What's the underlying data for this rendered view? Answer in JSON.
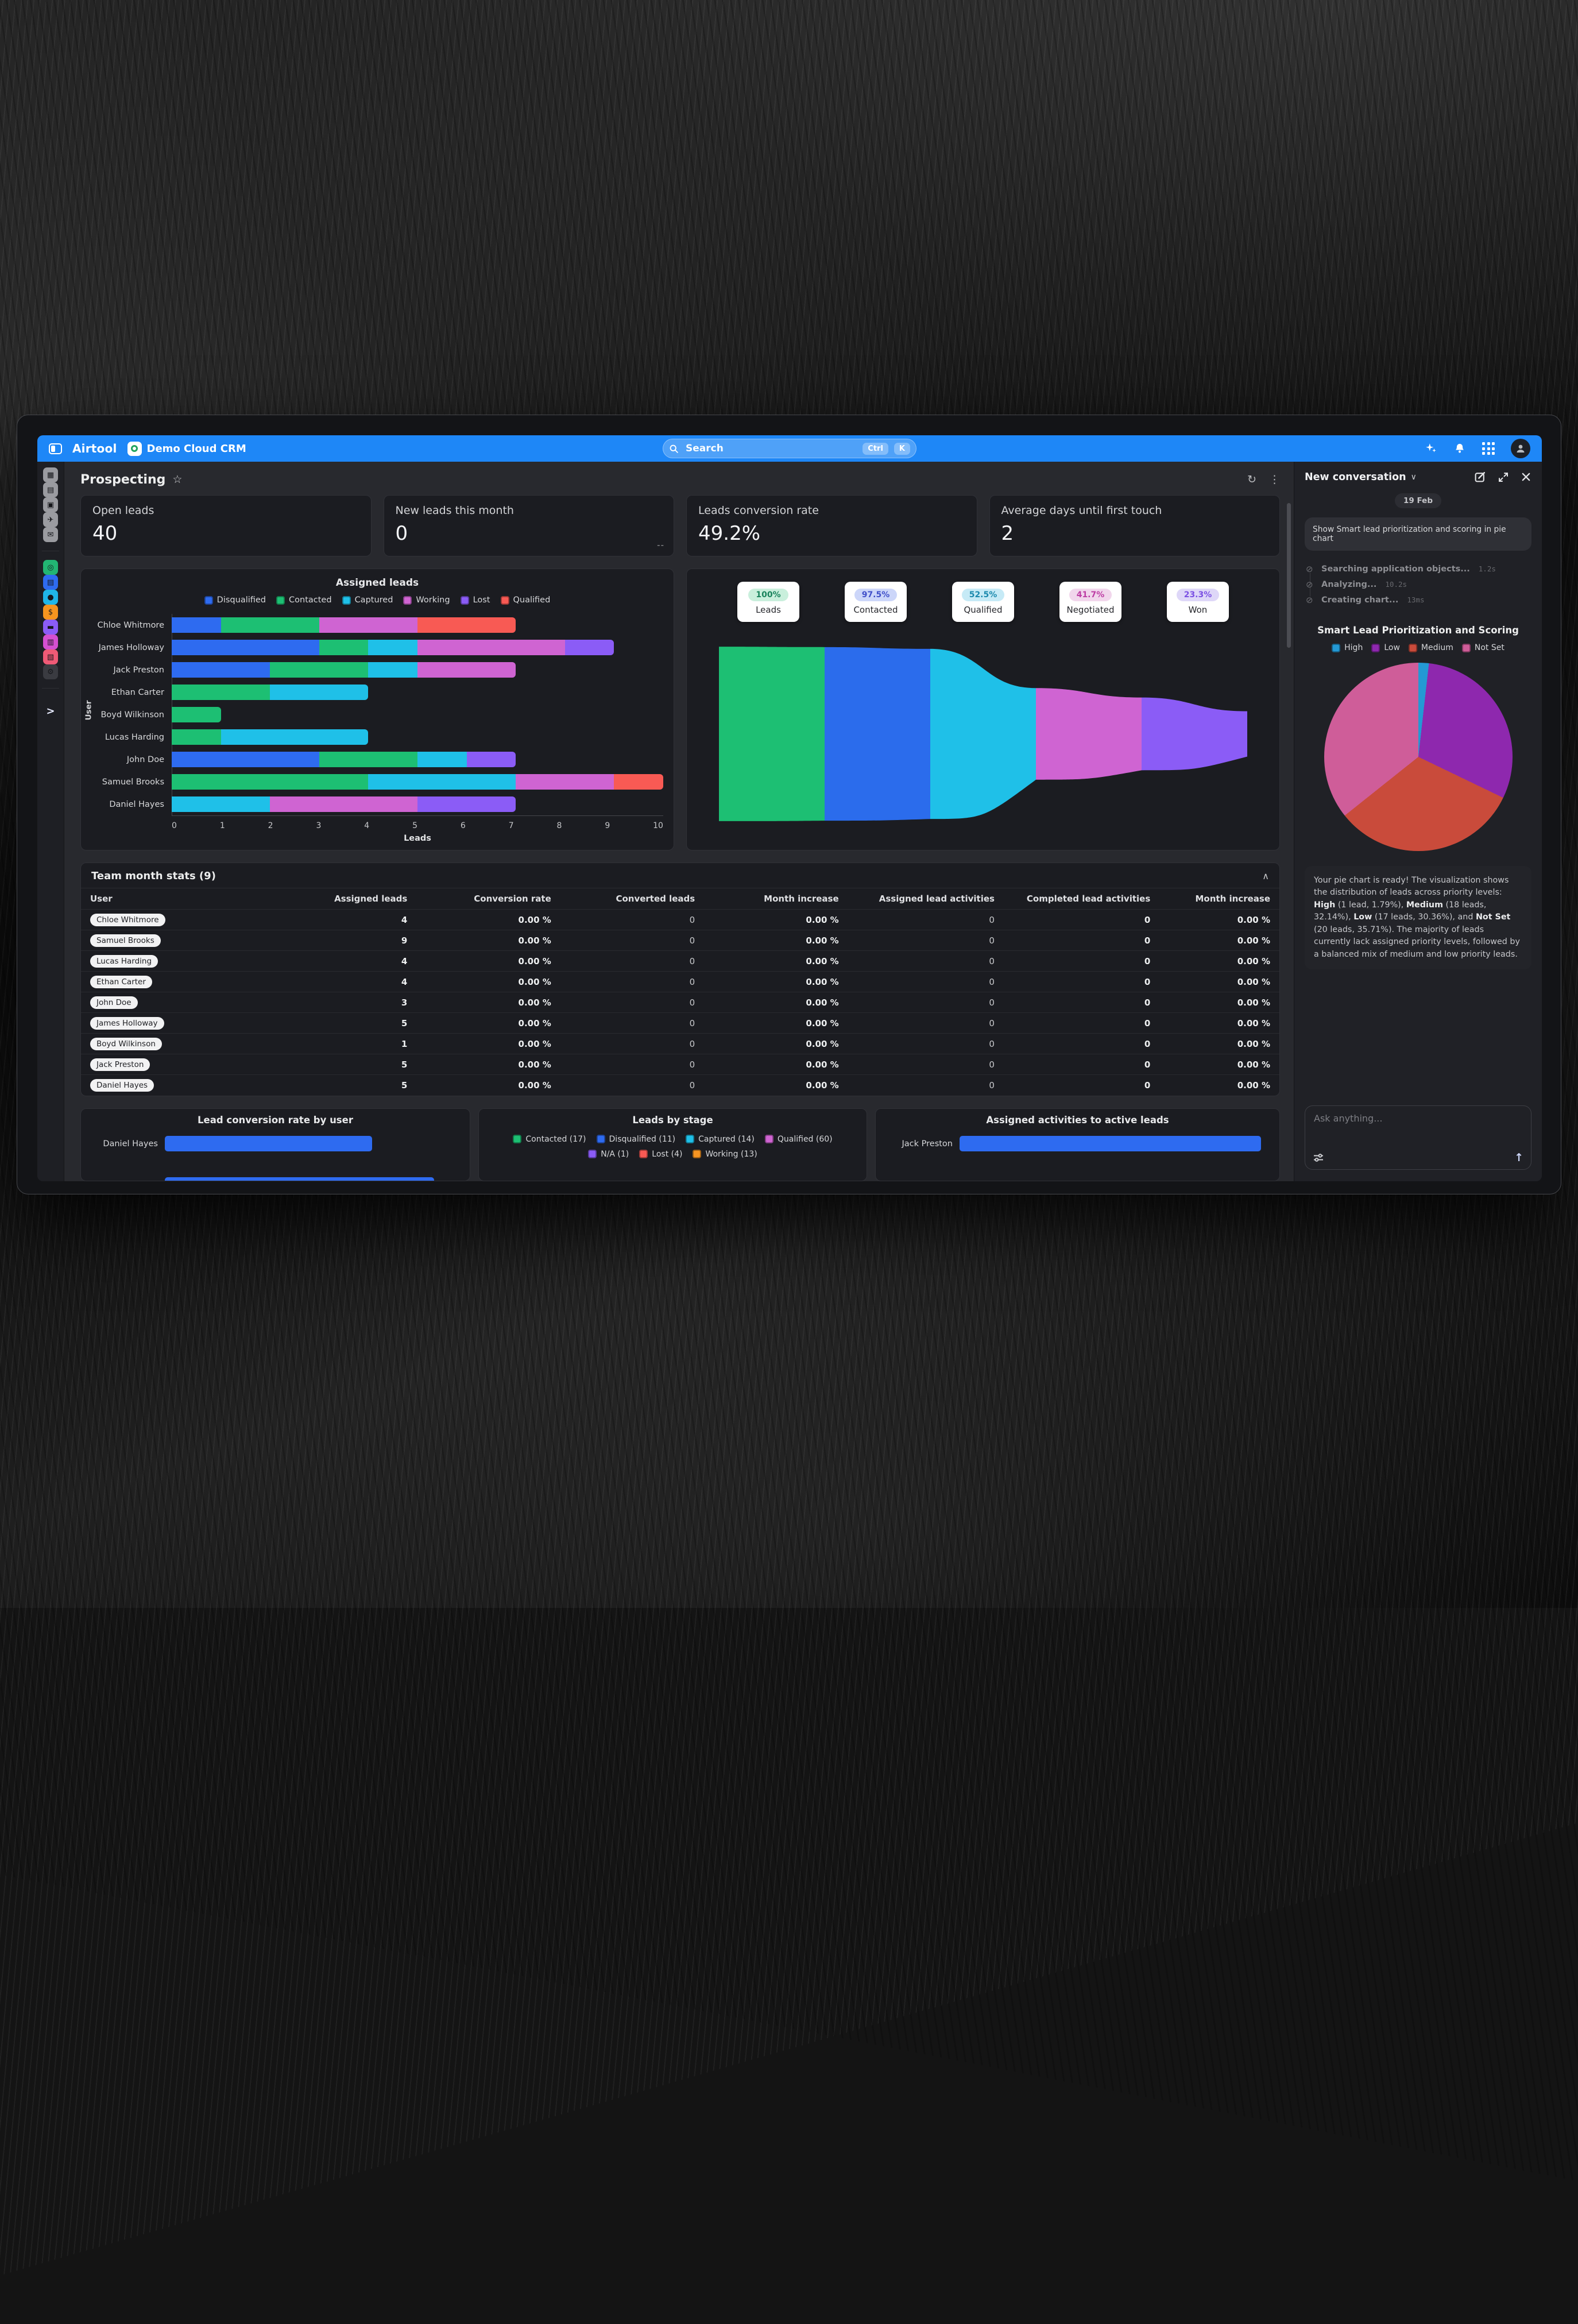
{
  "header": {
    "app_name": "Airtool",
    "workspace_badge": "Demo Cloud CRM",
    "search": {
      "placeholder": "Search",
      "shortcut": [
        "Ctrl",
        "K"
      ]
    },
    "right_icons": [
      "sparkles-icon",
      "bell-icon",
      "apps-grid-icon",
      "user-avatar"
    ]
  },
  "rail": {
    "top": [
      {
        "name": "dashboard-icon",
        "glyph": "▦"
      },
      {
        "name": "notes-icon",
        "glyph": "▤"
      },
      {
        "name": "tasks-icon",
        "glyph": "▣"
      },
      {
        "name": "send-icon",
        "glyph": "✈"
      },
      {
        "name": "mail-icon",
        "glyph": "✉"
      }
    ],
    "colored": [
      {
        "name": "deals-icon",
        "glyph": "◎",
        "bg": "#22b573"
      },
      {
        "name": "company-icon",
        "glyph": "▤",
        "bg": "#2e6bf0"
      },
      {
        "name": "contacts-icon",
        "glyph": "●",
        "bg": "#1fb6e8"
      },
      {
        "name": "finance-icon",
        "glyph": "$",
        "bg": "#f5941f"
      },
      {
        "name": "wallet-icon",
        "glyph": "▬",
        "bg": "#8b5cf6"
      },
      {
        "name": "library-icon",
        "glyph": "▥",
        "bg": "#d44fd0"
      },
      {
        "name": "reports-icon",
        "glyph": "▧",
        "bg": "#ef5a76"
      },
      {
        "name": "settings-icon",
        "glyph": "⚙",
        "bg": "#3a3b41"
      }
    ],
    "expand_glyph": ">"
  },
  "page": {
    "title": "Prospecting",
    "star": "☆",
    "refresh": "↻",
    "kebab": "⋮"
  },
  "kpis": [
    {
      "label": "Open leads",
      "value": "40"
    },
    {
      "label": "New leads this month",
      "value": "0",
      "note": "--"
    },
    {
      "label": "Leads conversion rate",
      "value": "49.2%"
    },
    {
      "label": "Average days until first touch",
      "value": "2"
    }
  ],
  "assigned_leads": {
    "type": "stacked-bar-horizontal",
    "title": "Assigned leads",
    "xlabel": "Leads",
    "ylabel": "User",
    "xlim": [
      0,
      10
    ],
    "xticks": [
      "0",
      "1",
      "2",
      "3",
      "4",
      "5",
      "6",
      "7",
      "8",
      "9",
      "10"
    ],
    "stage_colors": {
      "Disqualified": "#2e6bf0",
      "Contacted": "#1dbf73",
      "Captured": "#1fc0e8",
      "Working": "#cf64d2",
      "Lost": "#8b5cf6",
      "Qualified": "#f85a54"
    },
    "legend": [
      "Disqualified",
      "Contacted",
      "Captured",
      "Working",
      "Lost",
      "Qualified"
    ],
    "rows": [
      {
        "user": "Chloe Whitmore",
        "segments": [
          [
            "Disqualified",
            1
          ],
          [
            "Contacted",
            2
          ],
          [
            "Working",
            2
          ],
          [
            "Qualified",
            2
          ]
        ]
      },
      {
        "user": "James Holloway",
        "segments": [
          [
            "Disqualified",
            3
          ],
          [
            "Contacted",
            1
          ],
          [
            "Captured",
            1
          ],
          [
            "Working",
            3
          ],
          [
            "Lost",
            1
          ]
        ]
      },
      {
        "user": "Jack Preston",
        "segments": [
          [
            "Disqualified",
            2
          ],
          [
            "Contacted",
            2
          ],
          [
            "Captured",
            1
          ],
          [
            "Working",
            2
          ]
        ]
      },
      {
        "user": "Ethan Carter",
        "segments": [
          [
            "Contacted",
            2
          ],
          [
            "Captured",
            2
          ]
        ]
      },
      {
        "user": "Boyd Wilkinson",
        "segments": [
          [
            "Contacted",
            1
          ]
        ]
      },
      {
        "user": "Lucas Harding",
        "segments": [
          [
            "Contacted",
            1
          ],
          [
            "Captured",
            3
          ]
        ]
      },
      {
        "user": "John Doe",
        "segments": [
          [
            "Disqualified",
            3
          ],
          [
            "Contacted",
            2
          ],
          [
            "Captured",
            1
          ],
          [
            "Lost",
            1
          ]
        ]
      },
      {
        "user": "Samuel Brooks",
        "segments": [
          [
            "Contacted",
            4
          ],
          [
            "Captured",
            3
          ],
          [
            "Working",
            2
          ],
          [
            "Qualified",
            1
          ]
        ]
      },
      {
        "user": "Daniel Hayes",
        "segments": [
          [
            "Captured",
            2
          ],
          [
            "Working",
            3
          ],
          [
            "Lost",
            2
          ]
        ]
      }
    ]
  },
  "funnel": {
    "type": "funnel",
    "stages": [
      {
        "label": "Leads",
        "percent": "100%",
        "badge_bg": "#c9efdc",
        "badge_fg": "#19835c",
        "color": "#1dbf73"
      },
      {
        "label": "Contacted",
        "percent": "97.5%",
        "badge_bg": "#ccd6f9",
        "badge_fg": "#4150c9",
        "color": "#2b6cec"
      },
      {
        "label": "Qualified",
        "percent": "52.5%",
        "badge_bg": "#c6eaf6",
        "badge_fg": "#1b89ad",
        "color": "#1fc0e8"
      },
      {
        "label": "Negotiated",
        "percent": "41.7%",
        "badge_bg": "#f1d6ec",
        "badge_fg": "#bd3da4",
        "color": "#cf64d2"
      },
      {
        "label": "Won",
        "percent": "23.3%",
        "badge_bg": "#ded7f8",
        "badge_fg": "#7b50e3",
        "color": "#8b5cf6"
      }
    ],
    "boundary_heights": [
      100,
      99.5,
      97.5,
      52.5,
      41.7,
      26
    ]
  },
  "team_stats": {
    "title": "Team month stats (9)",
    "collapse_glyph": "∧",
    "columns": [
      "User",
      "Assigned leads",
      "Conversion rate",
      "Converted leads",
      "Month increase",
      "Assigned lead activities",
      "Completed lead activities",
      "Month increase"
    ],
    "bold_flags": [
      true,
      true,
      false,
      true,
      false,
      true,
      true
    ],
    "rows": [
      {
        "user": "Chloe Whitmore",
        "values": [
          "4",
          "0.00 %",
          "0",
          "0.00 %",
          "0",
          "0",
          "0.00 %"
        ]
      },
      {
        "user": "Samuel Brooks",
        "values": [
          "9",
          "0.00 %",
          "0",
          "0.00 %",
          "0",
          "0",
          "0.00 %"
        ]
      },
      {
        "user": "Lucas Harding",
        "values": [
          "4",
          "0.00 %",
          "0",
          "0.00 %",
          "0",
          "0",
          "0.00 %"
        ]
      },
      {
        "user": "Ethan Carter",
        "values": [
          "4",
          "0.00 %",
          "0",
          "0.00 %",
          "0",
          "0",
          "0.00 %"
        ]
      },
      {
        "user": "John Doe",
        "values": [
          "3",
          "0.00 %",
          "0",
          "0.00 %",
          "0",
          "0",
          "0.00 %"
        ]
      },
      {
        "user": "James Holloway",
        "values": [
          "5",
          "0.00 %",
          "0",
          "0.00 %",
          "0",
          "0",
          "0.00 %"
        ]
      },
      {
        "user": "Boyd Wilkinson",
        "values": [
          "1",
          "0.00 %",
          "0",
          "0.00 %",
          "0",
          "0",
          "0.00 %"
        ]
      },
      {
        "user": "Jack Preston",
        "values": [
          "5",
          "0.00 %",
          "0",
          "0.00 %",
          "0",
          "0",
          "0.00 %"
        ]
      },
      {
        "user": "Daniel Hayes",
        "values": [
          "5",
          "0.00 %",
          "0",
          "0.00 %",
          "0",
          "0",
          "0.00 %"
        ]
      }
    ]
  },
  "bottom_charts": {
    "conversion_by_user": {
      "type": "bar-horizontal",
      "title": "Lead conversion rate by user",
      "bar_color": "#2e6bf0",
      "rows": [
        {
          "label": "Daniel Hayes",
          "value_pct": 70
        },
        {
          "label": "",
          "value_pct": 91
        }
      ]
    },
    "leads_by_stage": {
      "type": "legend",
      "title": "Leads by stage",
      "legend": [
        {
          "label": "Contacted (17)",
          "color": "#1dbf73"
        },
        {
          "label": "Disqualified (11)",
          "color": "#2e6bf0"
        },
        {
          "label": "Captured (14)",
          "color": "#1fc0e8"
        },
        {
          "label": "Qualified (60)",
          "color": "#cf64d2"
        },
        {
          "label": "N/A (1)",
          "color": "#8b5cf6"
        },
        {
          "label": "Lost (4)",
          "color": "#f85a54"
        },
        {
          "label": "Working (13)",
          "color": "#f59422"
        }
      ]
    },
    "activities_to_active": {
      "type": "bar-horizontal",
      "title": "Assigned activities to active leads",
      "bar_color": "#2e6bf0",
      "rows": [
        {
          "label": "Jack Preston",
          "value_pct": 97
        }
      ]
    }
  },
  "chat": {
    "title": "New conversation",
    "chevron": "∨",
    "date_chip": "19 Feb",
    "user_message": "Show Smart lead prioritization and scoring in pie chart",
    "step_icon_glyph": "⊘",
    "steps": [
      {
        "label": "Searching application objects...",
        "duration": "1.2s"
      },
      {
        "label": "Analyzing...",
        "duration": "10.2s"
      },
      {
        "label": "Creating chart...",
        "duration": "13ms"
      }
    ],
    "pie": {
      "type": "pie",
      "title": "Smart Lead Prioritization and Scoring",
      "slices": [
        {
          "label": "High",
          "pct": 1.79,
          "color": "#2499d4"
        },
        {
          "label": "Low",
          "pct": 30.36,
          "color": "#8e28ae"
        },
        {
          "label": "Medium",
          "pct": 32.14,
          "color": "#c94b3b"
        },
        {
          "label": "Not Set",
          "pct": 35.71,
          "color": "#cf5d99"
        }
      ]
    },
    "reply": [
      {
        "t": "Your pie chart is ready! The visualization shows the distribution of leads across priority levels: "
      },
      {
        "t": "High",
        "b": true
      },
      {
        "t": " (1 lead, 1.79%), "
      },
      {
        "t": "Medium",
        "b": true
      },
      {
        "t": " (18 leads, 32.14%), "
      },
      {
        "t": "Low",
        "b": true
      },
      {
        "t": " (17 leads, 30.36%), and "
      },
      {
        "t": "Not Set",
        "b": true
      },
      {
        "t": " (20 leads, 35.71%). The majority of leads currently lack assigned priority levels, followed by a balanced mix of medium and low priority leads."
      }
    ],
    "input_placeholder": "Ask anything..."
  }
}
